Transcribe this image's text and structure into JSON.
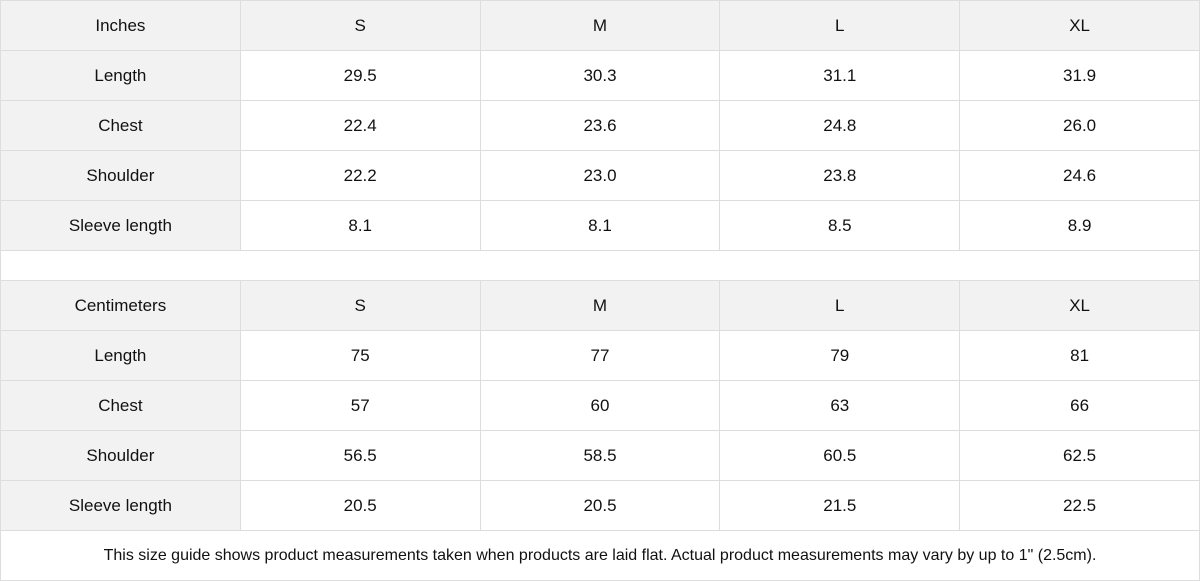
{
  "colors": {
    "header_bg": "#f2f2f2",
    "border": "#dddddd"
  },
  "tables": [
    {
      "headers": [
        "Inches",
        "S",
        "M",
        "L",
        "XL"
      ],
      "rows": [
        [
          "Length",
          "29.5",
          "30.3",
          "31.1",
          "31.9"
        ],
        [
          "Chest",
          "22.4",
          "23.6",
          "24.8",
          "26.0"
        ],
        [
          "Shoulder",
          "22.2",
          "23.0",
          "23.8",
          "24.6"
        ],
        [
          "Sleeve length",
          "8.1",
          "8.1",
          "8.5",
          "8.9"
        ]
      ]
    },
    {
      "headers": [
        "Centimeters",
        "S",
        "M",
        "L",
        "XL"
      ],
      "rows": [
        [
          "Length",
          "75",
          "77",
          "79",
          "81"
        ],
        [
          "Chest",
          "57",
          "60",
          "63",
          "66"
        ],
        [
          "Shoulder",
          "56.5",
          "58.5",
          "60.5",
          "62.5"
        ],
        [
          "Sleeve length",
          "20.5",
          "20.5",
          "21.5",
          "22.5"
        ]
      ]
    }
  ],
  "note": "This size guide shows product measurements taken when products are laid flat.  Actual product measurements may vary by up to 1\" (2.5cm)."
}
